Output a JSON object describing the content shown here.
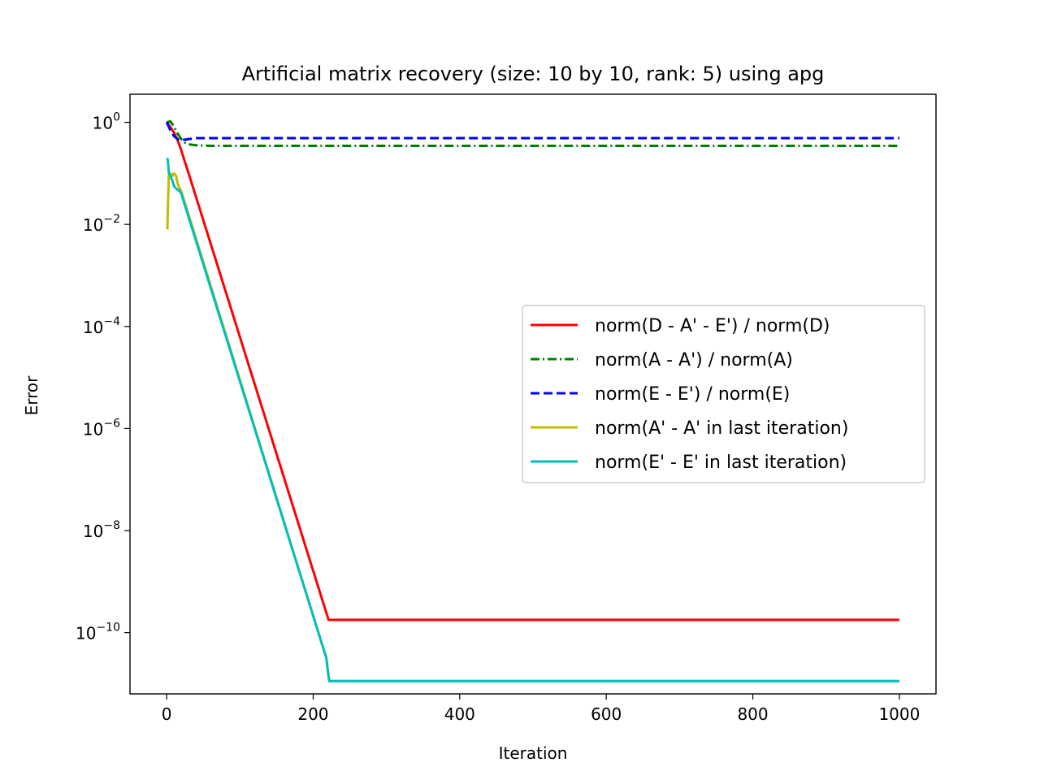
{
  "chart_data": {
    "type": "line",
    "title": "Artificial matrix recovery (size: 10 by 10, rank: 5) using apg",
    "xlabel": "Iteration",
    "ylabel": "Error",
    "xlim": [
      -50,
      1050
    ],
    "ylim_log10": [
      -11.2,
      0.55
    ],
    "yscale": "log",
    "grid": false,
    "legend_position": "center-right",
    "x_ticks": [
      0,
      200,
      400,
      600,
      800,
      1000
    ],
    "x_tick_labels": [
      "0",
      "200",
      "400",
      "600",
      "800",
      "1000"
    ],
    "y_ticks_log10": [
      0,
      -2,
      -4,
      -6,
      -8,
      -10
    ],
    "y_tick_labels": [
      {
        "base": "10",
        "exp": "0"
      },
      {
        "base": "10",
        "exp": "−2"
      },
      {
        "base": "10",
        "exp": "−4"
      },
      {
        "base": "10",
        "exp": "−6"
      },
      {
        "base": "10",
        "exp": "−8"
      },
      {
        "base": "10",
        "exp": "−10"
      }
    ],
    "series": [
      {
        "name": "norm(D - A' - E') / norm(D)",
        "color": "#ff0000",
        "dash": "solid",
        "points": [
          [
            0,
            0
          ],
          [
            5,
            -0.09
          ],
          [
            10,
            -0.2
          ],
          [
            15,
            -0.35
          ],
          [
            20,
            -0.55
          ],
          [
            25,
            -0.78
          ],
          [
            30,
            -1.0
          ],
          [
            221,
            -9.75
          ],
          [
            1000,
            -9.75
          ]
        ]
      },
      {
        "name": "norm(A - A') / norm(A)",
        "color": "#008000",
        "dash": "dashdot",
        "points": [
          [
            0,
            0
          ],
          [
            5,
            0.02
          ],
          [
            10,
            -0.08
          ],
          [
            15,
            -0.22
          ],
          [
            20,
            -0.33
          ],
          [
            25,
            -0.4
          ],
          [
            30,
            -0.43
          ],
          [
            40,
            -0.45
          ],
          [
            60,
            -0.46
          ],
          [
            1000,
            -0.46
          ]
        ]
      },
      {
        "name": "norm(E - E') / norm(E)",
        "color": "#0000ff",
        "dash": "dashed",
        "points": [
          [
            0,
            0
          ],
          [
            5,
            -0.15
          ],
          [
            10,
            -0.27
          ],
          [
            15,
            -0.33
          ],
          [
            20,
            -0.35
          ],
          [
            30,
            -0.33
          ],
          [
            40,
            -0.31
          ],
          [
            60,
            -0.31
          ],
          [
            1000,
            -0.31
          ]
        ]
      },
      {
        "name": "norm(A' - A' in last iteration)",
        "color": "#bfbf00",
        "dash": "solid",
        "points": [
          [
            1,
            -2.1
          ],
          [
            2,
            -1.5
          ],
          [
            3,
            -1.05
          ],
          [
            5,
            -1.0
          ],
          [
            8,
            -1.05
          ],
          [
            10,
            -1.0
          ],
          [
            13,
            -1.05
          ],
          [
            15,
            -1.2
          ],
          [
            18,
            -1.3
          ],
          [
            20,
            -1.35
          ],
          [
            218,
            -10.5
          ],
          [
            220,
            -10.75
          ],
          [
            222,
            -10.95
          ],
          [
            1000,
            -10.95
          ]
        ]
      },
      {
        "name": "norm(E' - E' in last iteration)",
        "color": "#00bfbf",
        "dash": "solid",
        "points": [
          [
            1,
            -0.7
          ],
          [
            2,
            -0.8
          ],
          [
            3,
            -1.0
          ],
          [
            5,
            -1.05
          ],
          [
            8,
            -1.15
          ],
          [
            10,
            -1.25
          ],
          [
            13,
            -1.3
          ],
          [
            18,
            -1.35
          ],
          [
            20,
            -1.4
          ],
          [
            218,
            -10.5
          ],
          [
            220,
            -10.75
          ],
          [
            222,
            -10.95
          ],
          [
            1000,
            -10.95
          ]
        ]
      }
    ]
  }
}
